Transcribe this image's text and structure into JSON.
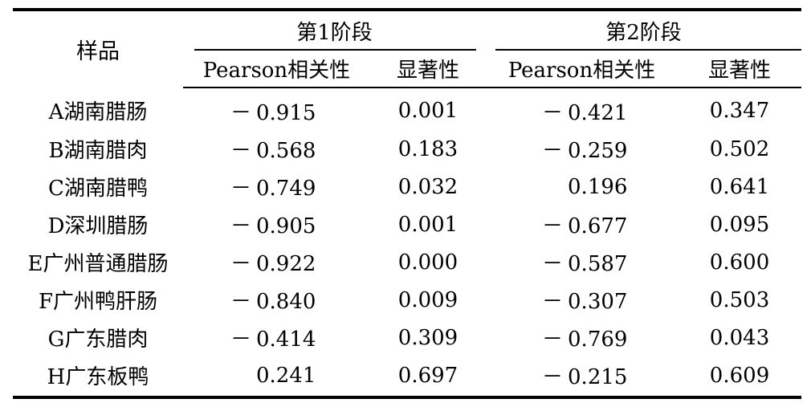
{
  "table": {
    "row_header": "样品",
    "groups": [
      {
        "label": "第1阶段",
        "cols": [
          "Pearson相关性",
          "显著性"
        ]
      },
      {
        "label": "第2阶段",
        "cols": [
          "Pearson相关性",
          "显著性"
        ]
      }
    ],
    "rows": [
      {
        "sample": "A湖南腊肠",
        "p1": "0.915",
        "p1_sign": "－",
        "s1": "0.001",
        "p2": "0.421",
        "p2_sign": "－",
        "s2": "0.347"
      },
      {
        "sample": "B湖南腊肉",
        "p1": "0.568",
        "p1_sign": "－",
        "s1": "0.183",
        "p2": "0.259",
        "p2_sign": "－",
        "s2": "0.502"
      },
      {
        "sample": "C湖南腊鸭",
        "p1": "0.749",
        "p1_sign": "－",
        "s1": "0.032",
        "p2": "0.196",
        "p2_sign": "",
        "s2": "0.641"
      },
      {
        "sample": "D深圳腊肠",
        "p1": "0.905",
        "p1_sign": "－",
        "s1": "0.001",
        "p2": "0.677",
        "p2_sign": "－",
        "s2": "0.095"
      },
      {
        "sample": "E广州普通腊肠",
        "p1": "0.922",
        "p1_sign": "－",
        "s1": "0.000",
        "p2": "0.587",
        "p2_sign": "－",
        "s2": "0.600"
      },
      {
        "sample": "F广州鸭肝肠",
        "p1": "0.840",
        "p1_sign": "－",
        "s1": "0.009",
        "p2": "0.307",
        "p2_sign": "－",
        "s2": "0.503"
      },
      {
        "sample": "G广东腊肉",
        "p1": "0.414",
        "p1_sign": "－",
        "s1": "0.309",
        "p2": "0.769",
        "p2_sign": "－",
        "s2": "0.043"
      },
      {
        "sample": "H广东板鸭",
        "p1": "0.241",
        "p1_sign": "",
        "s1": "0.697",
        "p2": "0.215",
        "p2_sign": "－",
        "s2": "0.609"
      }
    ]
  }
}
